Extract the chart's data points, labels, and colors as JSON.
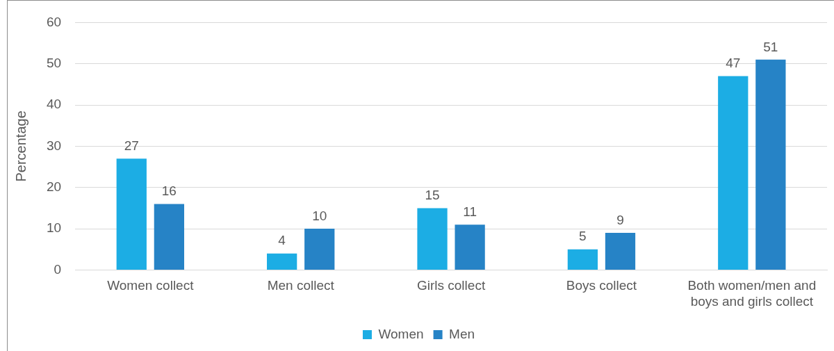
{
  "chart_data": {
    "type": "bar",
    "ylabel": "Percentage",
    "categories": [
      "Women collect",
      "Men collect",
      "Girls collect",
      "Boys collect",
      "Both women/men and boys and girls collect"
    ],
    "series": [
      {
        "name": "Women",
        "color": "#1cade4",
        "values": [
          27,
          4,
          15,
          5,
          47
        ]
      },
      {
        "name": "Men",
        "color": "#2683c6",
        "values": [
          16,
          10,
          11,
          9,
          51
        ]
      }
    ],
    "ylim": [
      0,
      60
    ],
    "yticks": [
      0,
      10,
      20,
      30,
      40,
      50,
      60
    ],
    "grid": "y",
    "legend": "bottom",
    "data_labels": true
  }
}
